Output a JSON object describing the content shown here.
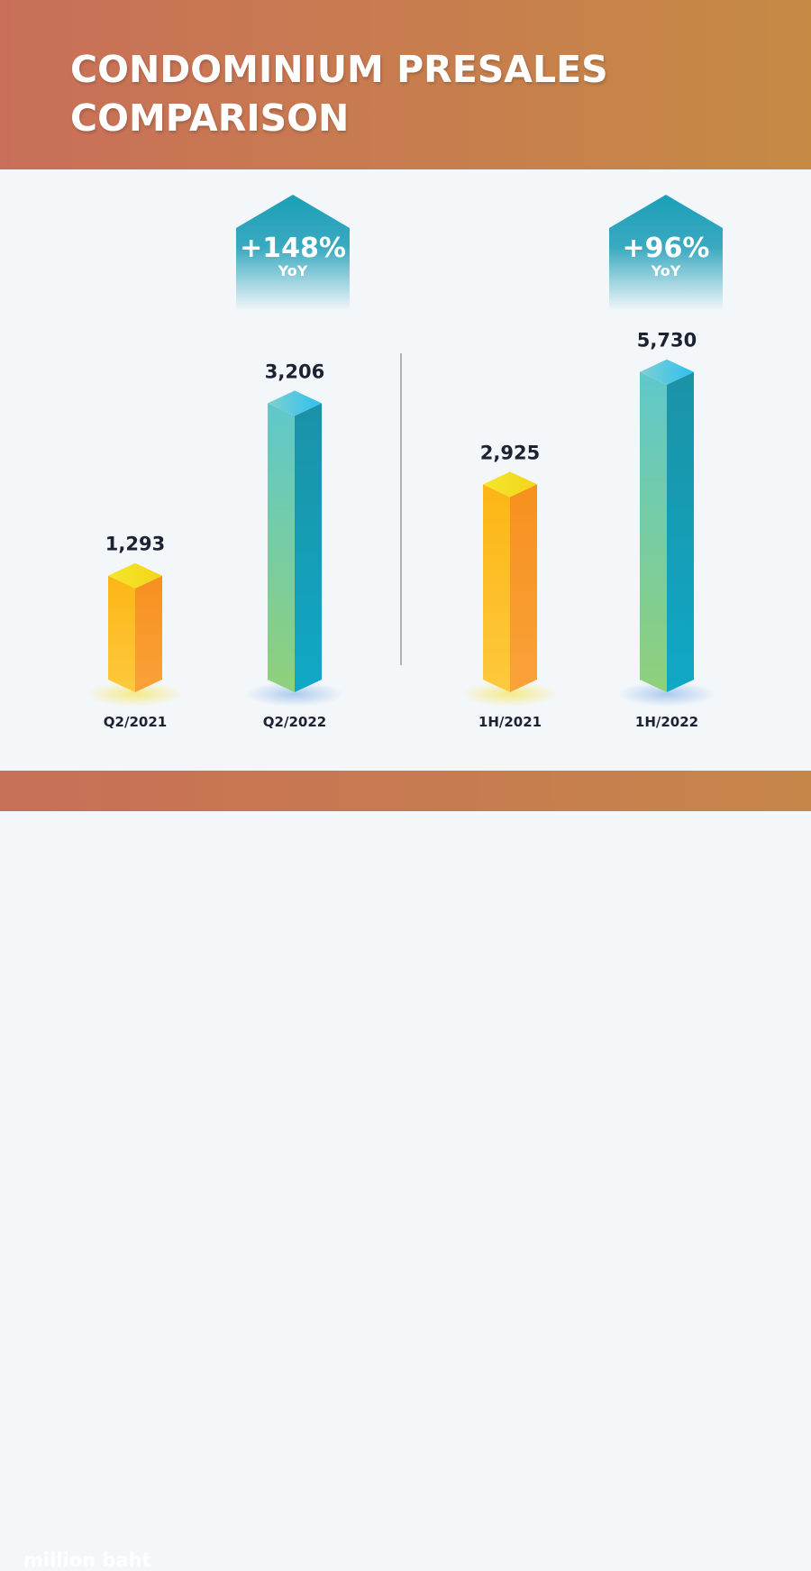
{
  "header": {
    "title_line1": "CONDOMINIUM PRESALES",
    "title_line2": "COMPARISON"
  },
  "footer": {
    "unit": "million baht"
  },
  "colors": {
    "orange_top": "#f4e41c",
    "orange_front": "#fcb316",
    "orange_side": "#f7901e",
    "teal_top": "#3ec6f0",
    "teal_front": "#6ccbc0",
    "teal_side": "#1a9fb3",
    "badge": "#1aa0b8"
  },
  "chart_data": {
    "type": "bar",
    "title": "CONDOMINIUM PRESALES COMPARISON",
    "ylabel": "million baht",
    "categories": [
      "Q2/2021",
      "Q2/2022",
      "1H/2021",
      "1H/2022"
    ],
    "values": [
      1293,
      3206,
      2925,
      5730
    ],
    "value_labels": [
      "1,293",
      "3,206",
      "2,925",
      "5,730"
    ],
    "groups": [
      {
        "categories": [
          "Q2/2021",
          "Q2/2022"
        ],
        "change": "+148%",
        "change_label": "YoY"
      },
      {
        "categories": [
          "1H/2021",
          "1H/2022"
        ],
        "change": "+96%",
        "change_label": "YoY"
      }
    ]
  }
}
